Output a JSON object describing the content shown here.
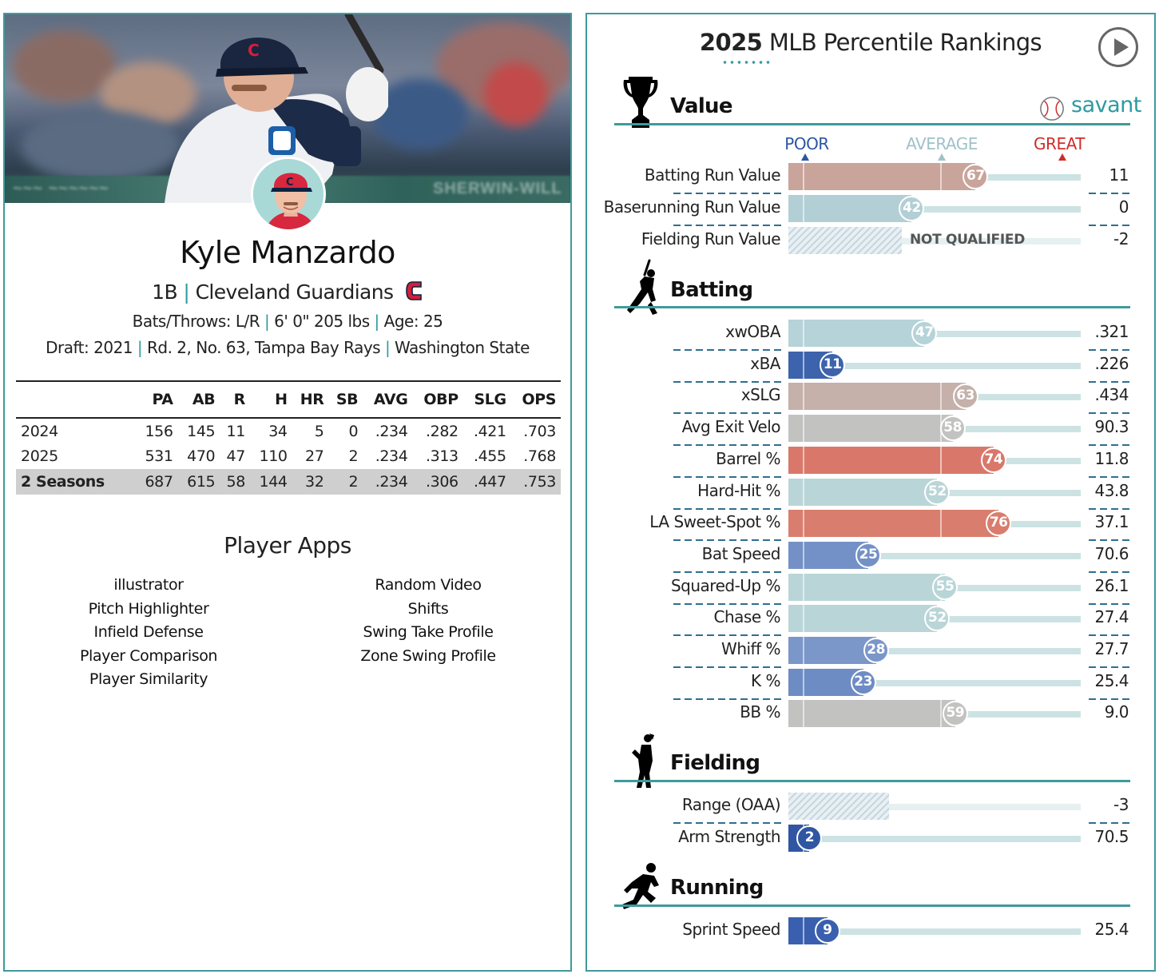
{
  "player": {
    "name": "Kyle Manzardo",
    "position": "1B",
    "team": "Cleveland Guardians",
    "bats_throws_label": "Bats/Throws:",
    "bats_throws": "L/R",
    "height_weight": "6' 0\" 205 lbs",
    "age_label": "Age:",
    "age": "25",
    "draft_label": "Draft:",
    "draft_year": "2021",
    "draft_pick": "Rd. 2, No. 63,",
    "draft_team": "Tampa Bay Rays",
    "school": "Washington State"
  },
  "stats": {
    "headers": [
      "",
      "PA",
      "AB",
      "R",
      "H",
      "HR",
      "SB",
      "AVG",
      "OBP",
      "SLG",
      "OPS"
    ],
    "rows": [
      [
        "2024",
        "156",
        "145",
        "11",
        "34",
        "5",
        "0",
        ".234",
        ".282",
        ".421",
        ".703"
      ],
      [
        "2025",
        "531",
        "470",
        "47",
        "110",
        "27",
        "2",
        ".234",
        ".313",
        ".455",
        ".768"
      ],
      [
        "2 Seasons",
        "687",
        "615",
        "58",
        "144",
        "32",
        "2",
        ".234",
        ".306",
        ".447",
        ".753"
      ]
    ]
  },
  "apps": {
    "title": "Player Apps",
    "left": [
      "illustrator",
      "Pitch Highlighter",
      "Infield Defense",
      "Player Comparison",
      "Player Similarity"
    ],
    "right": [
      "Random Video",
      "Shifts",
      "Swing Take Profile",
      "Zone Swing Profile"
    ]
  },
  "percentile": {
    "title_year": "2025",
    "title_rest": "MLB Percentile Rankings",
    "brand": "savant",
    "scale": {
      "poor": "POOR",
      "average": "AVERAGE",
      "great": "GREAT"
    },
    "not_qualified": "NOT QUALIFIED",
    "sections": {
      "value": {
        "title": "Value",
        "metrics": [
          {
            "label": "Batting Run Value",
            "pct": 67,
            "value": "11",
            "color": "#c9a49b"
          },
          {
            "label": "Baserunning Run Value",
            "pct": 42,
            "value": "0",
            "color": "#b2cfd5"
          },
          {
            "label": "Fielding Run Value",
            "pct": null,
            "value": "-2",
            "nq": true
          }
        ]
      },
      "batting": {
        "title": "Batting",
        "metrics": [
          {
            "label": "xwOBA",
            "pct": 47,
            "value": ".321",
            "color": "#b5d3d8"
          },
          {
            "label": "xBA",
            "pct": 11,
            "value": ".226",
            "color": "#3d63ac"
          },
          {
            "label": "xSLG",
            "pct": 63,
            "value": ".434",
            "color": "#c5b0aa"
          },
          {
            "label": "Avg Exit Velo",
            "pct": 58,
            "value": "90.3",
            "color": "#c2c3c1"
          },
          {
            "label": "Barrel %",
            "pct": 74,
            "value": "11.8",
            "color": "#d9786a"
          },
          {
            "label": "Hard-Hit %",
            "pct": 52,
            "value": "43.8",
            "color": "#b9d5d7"
          },
          {
            "label": "LA Sweet-Spot %",
            "pct": 76,
            "value": "37.1",
            "color": "#d97d6e"
          },
          {
            "label": "Bat Speed",
            "pct": 25,
            "value": "70.6",
            "color": "#7491c7"
          },
          {
            "label": "Squared-Up %",
            "pct": 55,
            "value": "26.1",
            "color": "#b9d5d7"
          },
          {
            "label": "Chase %",
            "pct": 52,
            "value": "27.4",
            "color": "#b9d5d7"
          },
          {
            "label": "Whiff %",
            "pct": 28,
            "value": "27.7",
            "color": "#7b96c9"
          },
          {
            "label": "K %",
            "pct": 23,
            "value": "25.4",
            "color": "#6d8cc4"
          },
          {
            "label": "BB %",
            "pct": 59,
            "value": "9.0",
            "color": "#c2c3c1"
          }
        ]
      },
      "fielding": {
        "title": "Fielding",
        "metrics": [
          {
            "label": "Range (OAA)",
            "pct": null,
            "value": "-3",
            "hatch": true
          },
          {
            "label": "Arm Strength",
            "pct": 2,
            "value": "70.5",
            "color": "#3056a3"
          }
        ]
      },
      "running": {
        "title": "Running",
        "metrics": [
          {
            "label": "Sprint Speed",
            "pct": 9,
            "value": "25.4",
            "color": "#3a5fae"
          }
        ]
      }
    }
  },
  "colors": {
    "teal": "#3f9a9c",
    "poor": "#2d55a3",
    "average": "#9fc2c8",
    "great": "#d12b2b",
    "guardians_red": "#d31f3a",
    "guardians_navy": "#0c2340"
  }
}
